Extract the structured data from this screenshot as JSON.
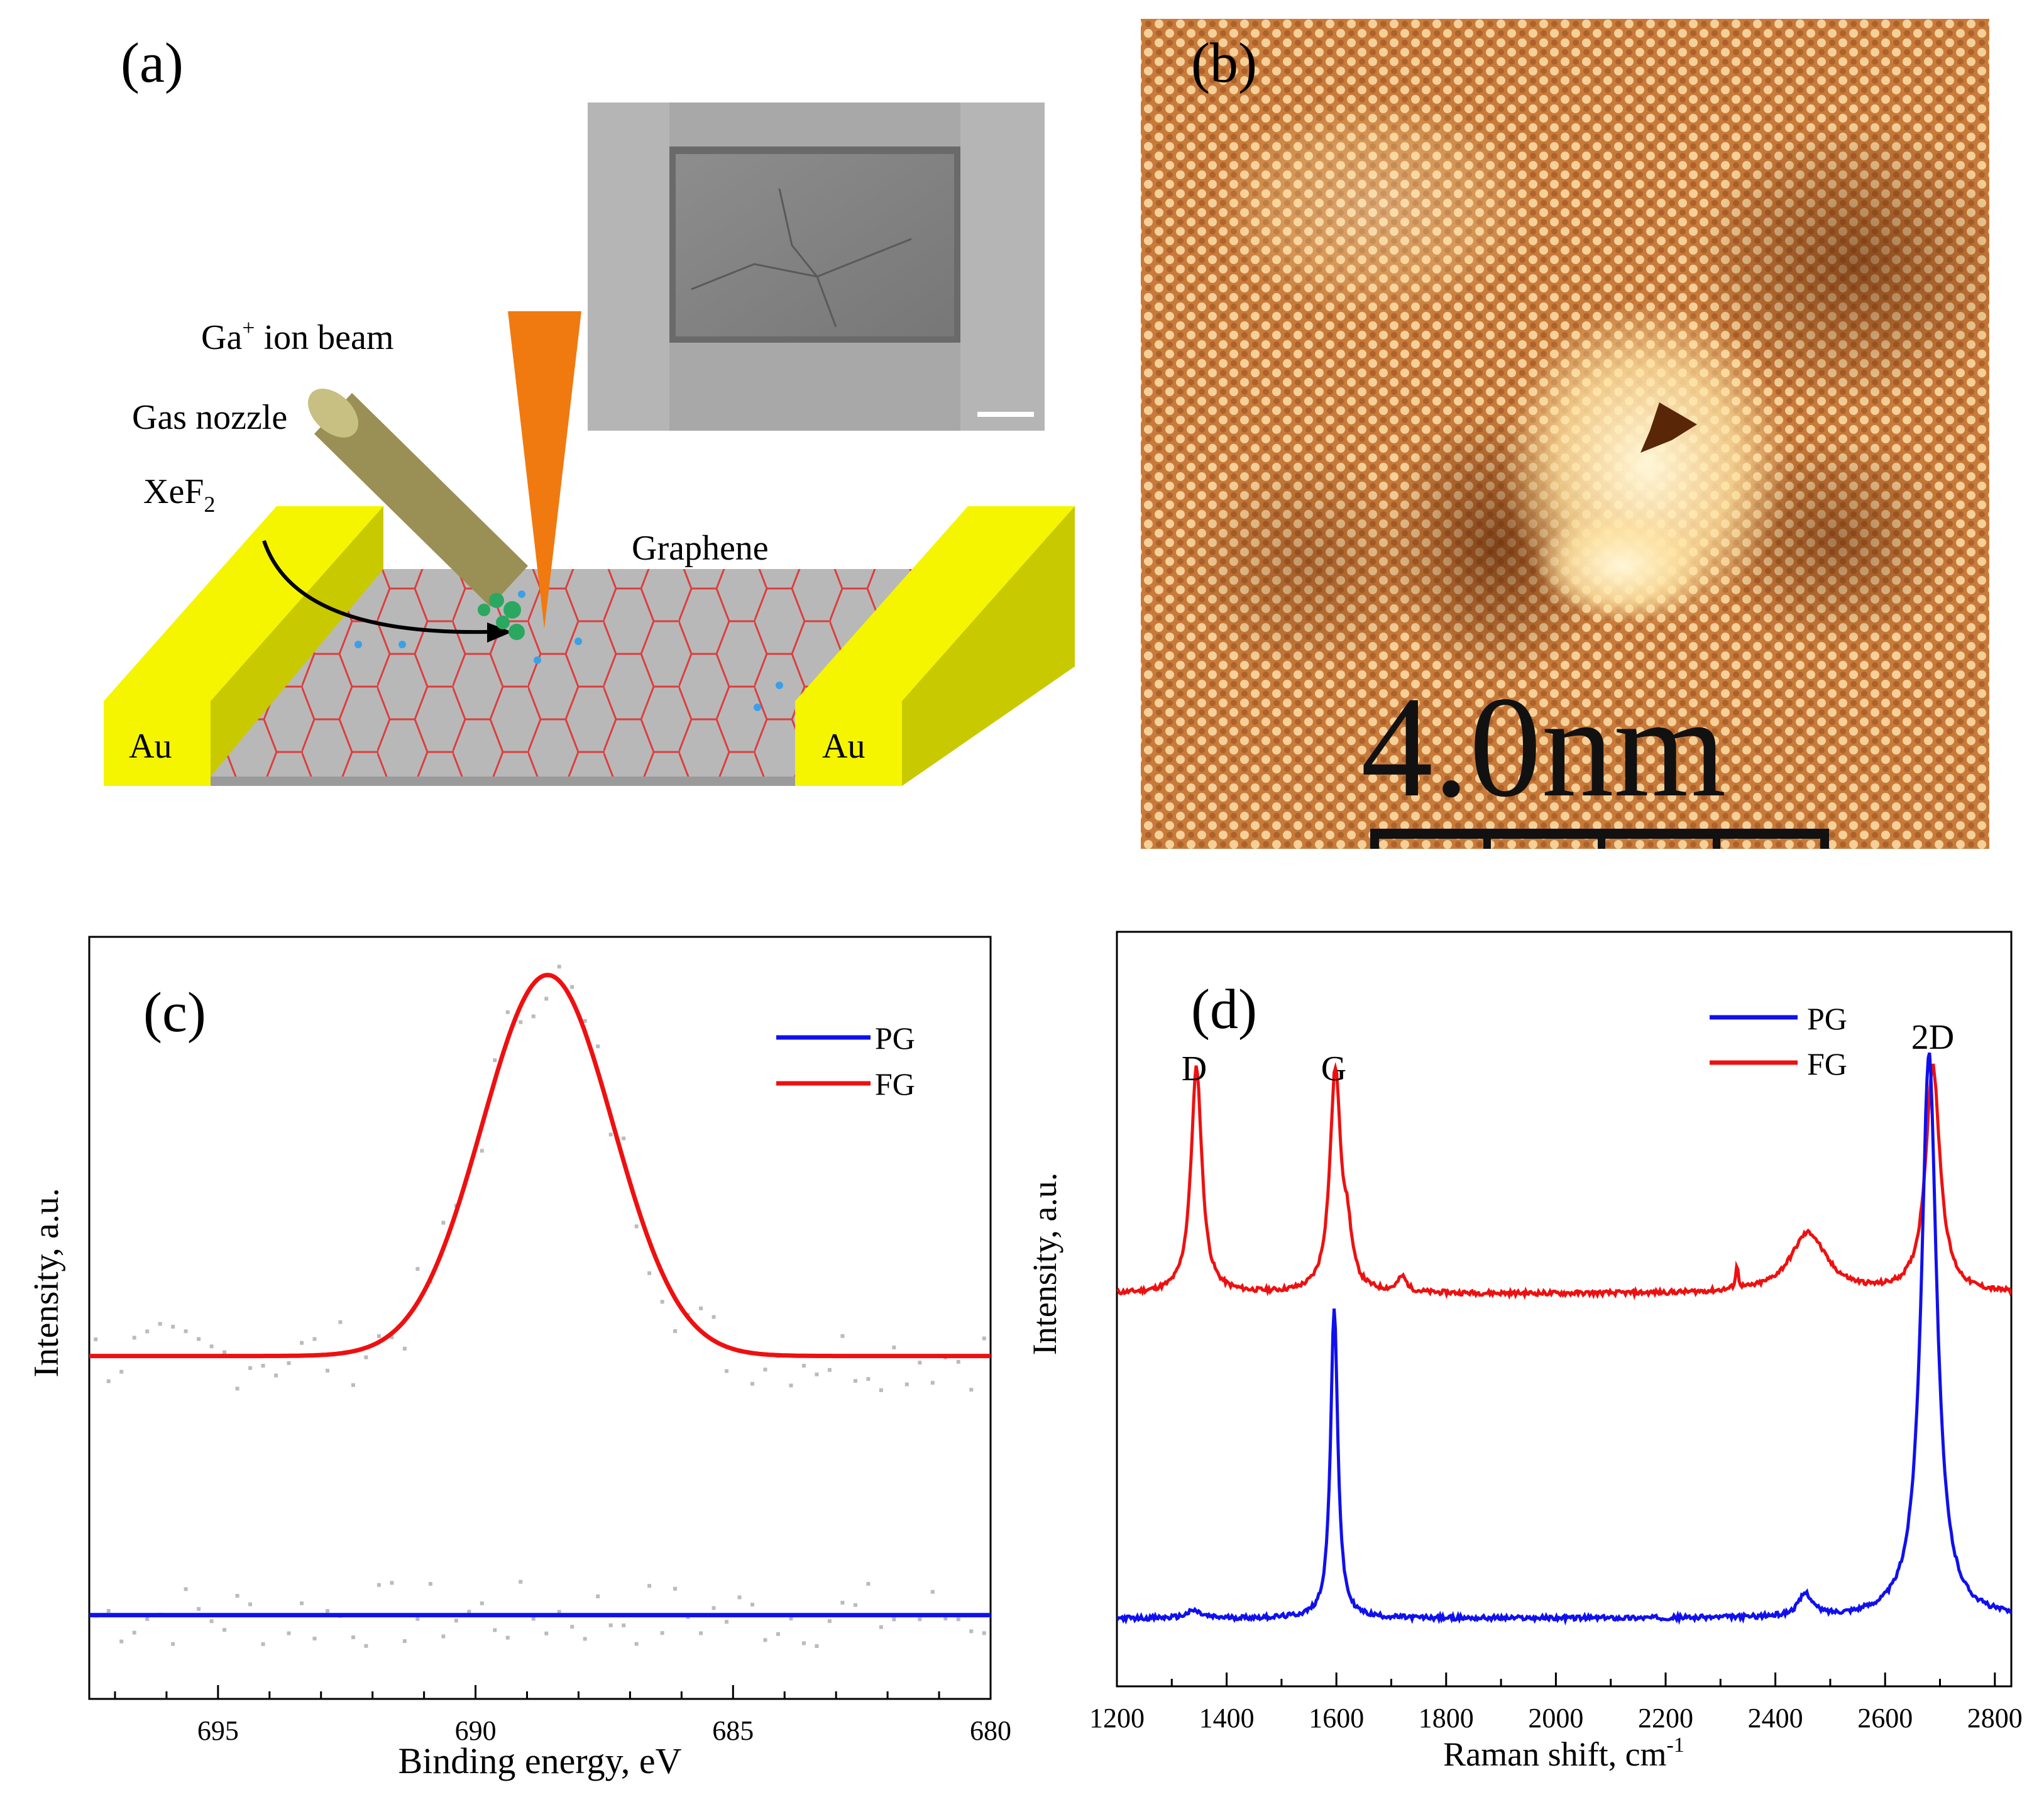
{
  "panel_a": {
    "label": "(a)",
    "beam_label": "Ga",
    "beam_sup": "+",
    "beam_suffix": " ion beam",
    "nozzle_label": "Gas nozzle",
    "gas_label": "XeF",
    "gas_sub": "2",
    "graphene_label": "Graphene",
    "electrode_left": "Au",
    "electrode_right": "Au",
    "colors": {
      "gold": "#f5f500",
      "gold_side": "#c9c900",
      "nozzle": "#9a8f55",
      "beam": "#f07a10",
      "lattice": "#e03030",
      "substrate": "#b8b8b8"
    }
  },
  "panel_b": {
    "label": "(b)",
    "scale_text": "4.0nm",
    "colors": {
      "base": "#c87a3a",
      "bright": "#fff2c8",
      "dark": "#6a3010"
    }
  },
  "panel_c": {
    "label": "(c)",
    "xlabel": "Binding energy, eV",
    "ylabel": "Intensity, a.u.",
    "legend": [
      {
        "name": "PG",
        "color": "#1010ee"
      },
      {
        "name": "FG",
        "color": "#ee1010"
      }
    ]
  },
  "panel_d": {
    "label": "(d)",
    "xlabel": "Raman shift, cm",
    "xlabel_sup": "-1",
    "ylabel": "Intensity, a.u.",
    "legend": [
      {
        "name": "PG",
        "color": "#1010ee"
      },
      {
        "name": "FG",
        "color": "#ee1010"
      }
    ],
    "peak_labels": [
      "D",
      "G",
      "2D"
    ]
  },
  "chart_data": [
    {
      "panel": "c",
      "type": "line",
      "title": "",
      "xlabel": "Binding energy, eV",
      "ylabel": "Intensity, a.u.",
      "xlim": [
        697.5,
        680
      ],
      "x_reversed": true,
      "ylim": [
        0,
        1
      ],
      "xticks": [
        695,
        690,
        685,
        680
      ],
      "series": [
        {
          "name": "PG",
          "color": "#1010ee",
          "shape": "flat",
          "baseline": 0.11
        },
        {
          "name": "FG",
          "color": "#ee1010",
          "shape": "gaussian",
          "baseline": 0.45,
          "peak_center": 688.6,
          "peak_height": 0.95,
          "fwhm": 3.0
        }
      ]
    },
    {
      "panel": "d",
      "type": "line",
      "title": "",
      "xlabel": "Raman shift, cm-1",
      "ylabel": "Intensity, a.u.",
      "xlim": [
        1200,
        2830
      ],
      "ylim": [
        0,
        1
      ],
      "xticks": [
        1200,
        1400,
        1600,
        1800,
        2000,
        2200,
        2400,
        2600,
        2800
      ],
      "series": [
        {
          "name": "FG",
          "color": "#ee1010",
          "baseline": 0.52,
          "peaks": [
            {
              "x": 1345,
              "height": 0.82,
              "width": 12
            },
            {
              "x": 1598,
              "height": 0.81,
              "width": 12
            },
            {
              "x": 1620,
              "height": 0.58,
              "width": 10
            },
            {
              "x": 1720,
              "height": 0.54,
              "width": 10
            },
            {
              "x": 2330,
              "height": 0.55,
              "width": 3
            },
            {
              "x": 2460,
              "height": 0.6,
              "width": 40
            },
            {
              "x": 2687,
              "height": 0.82,
              "width": 16
            }
          ]
        },
        {
          "name": "PG",
          "color": "#1010ee",
          "baseline": 0.09,
          "peaks": [
            {
              "x": 1340,
              "height": 0.1,
              "width": 15
            },
            {
              "x": 1596,
              "height": 0.5,
              "width": 8
            },
            {
              "x": 2455,
              "height": 0.12,
              "width": 15
            },
            {
              "x": 2680,
              "height": 0.84,
              "width": 17
            }
          ]
        }
      ]
    }
  ]
}
